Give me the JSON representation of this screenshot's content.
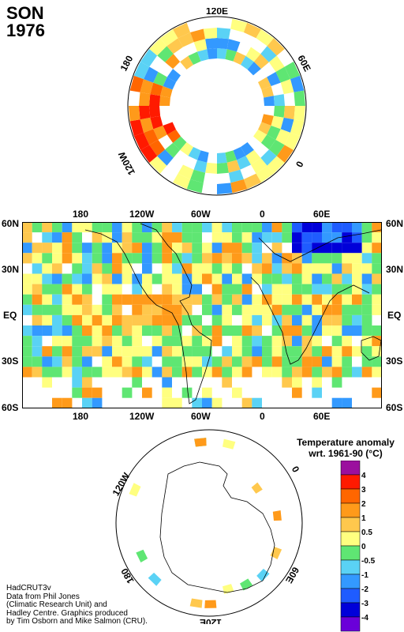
{
  "header": {
    "season": "SON",
    "year": "1976"
  },
  "north_polar": {
    "labels": {
      "top": "120E",
      "left": "180",
      "right": "60E",
      "lower_left": "120W",
      "lower_right": "0"
    }
  },
  "main_map": {
    "top_x_labels": [
      "180",
      "120W",
      "60W",
      "0",
      "60E"
    ],
    "bottom_x_labels": [
      "180",
      "120W",
      "60W",
      "0",
      "60E"
    ],
    "left_y_labels": [
      "60N",
      "30N",
      "EQ",
      "30S",
      "60S"
    ],
    "right_y_labels": [
      "60N",
      "30N",
      "EQ",
      "30S",
      "60S"
    ]
  },
  "south_polar": {
    "labels": {
      "left_upper": "120W",
      "right_upper": "0",
      "lower_left": "180",
      "lower_right": "60E",
      "bottom": "120E"
    }
  },
  "legend": {
    "title_line1": "Temperature anomaly",
    "title_line2": "wrt. 1961-90  (°C)",
    "ticks": [
      "4",
      "3",
      "2",
      "1",
      "0.5",
      "0",
      "-0.5",
      "-1",
      "-2",
      "-3",
      "-4"
    ],
    "colors": [
      "#9b0f9e",
      "#ff1a00",
      "#ff6600",
      "#ff9a1a",
      "#ffc84d",
      "#ffff80",
      "#5fe673",
      "#5ad2f5",
      "#3399ff",
      "#1f5cff",
      "#0000d9",
      "#6a00d9"
    ]
  },
  "credit": {
    "lines": [
      "HadCRUT3v",
      "Data from Phil Jones",
      "(Climatic Research Unit) and",
      "Hadley Centre.  Graphics produced",
      "by Tim Osborn and Mike Salmon (CRU)."
    ]
  }
}
